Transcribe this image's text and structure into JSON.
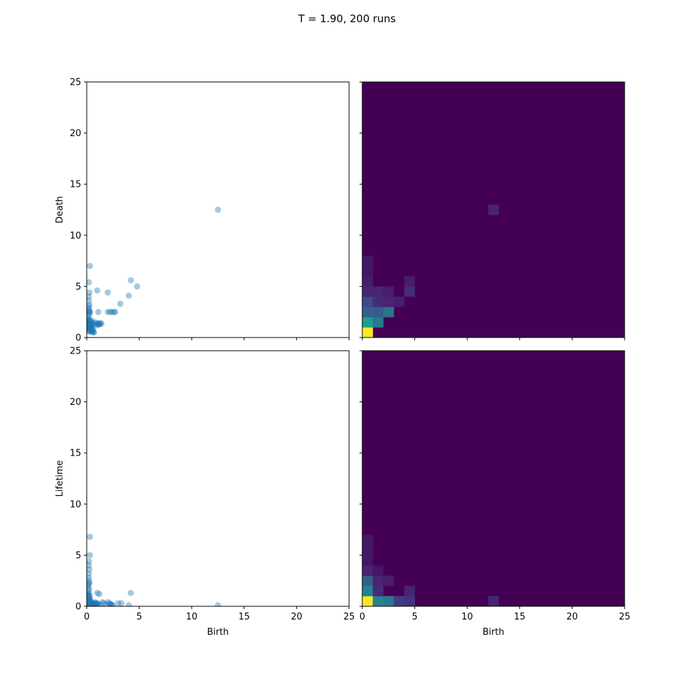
{
  "figure": {
    "suptitle": "T = 1.90, 200 runs"
  },
  "colors": {
    "scatter": "#1f77b4",
    "axis": "#000000",
    "viridis_low": "#440154",
    "viridis_high": "#fde725"
  },
  "chart_data": [
    {
      "type": "scatter",
      "panel": "top-left",
      "xlabel": "",
      "ylabel": "Death",
      "xlim": [
        0,
        25
      ],
      "ylim": [
        0,
        25
      ],
      "xticks": [
        0,
        5,
        10,
        15,
        20,
        25
      ],
      "yticks": [
        0,
        5,
        10,
        15,
        20,
        25
      ],
      "show_xticklabels": false,
      "show_yticklabels": true,
      "point_alpha": 0.05,
      "points": [
        [
          0.2,
          0.6
        ],
        [
          0.3,
          0.6
        ],
        [
          0.4,
          0.6
        ],
        [
          0.5,
          0.6
        ],
        [
          0.6,
          0.6
        ],
        [
          0.2,
          0.8
        ],
        [
          0.3,
          0.8
        ],
        [
          0.4,
          0.8
        ],
        [
          0.5,
          0.8
        ],
        [
          0.6,
          0.8
        ],
        [
          0.1,
          1.0
        ],
        [
          0.2,
          1.0
        ],
        [
          0.3,
          1.0
        ],
        [
          0.4,
          1.0
        ],
        [
          0.5,
          1.0
        ],
        [
          0.1,
          1.2
        ],
        [
          0.2,
          1.2
        ],
        [
          0.3,
          1.2
        ],
        [
          0.4,
          1.2
        ],
        [
          0.5,
          1.2
        ],
        [
          0.1,
          1.4
        ],
        [
          0.2,
          1.4
        ],
        [
          0.3,
          1.4
        ],
        [
          0.4,
          1.4
        ],
        [
          0.6,
          1.4
        ],
        [
          0.1,
          1.6
        ],
        [
          0.2,
          1.6
        ],
        [
          0.3,
          1.6
        ],
        [
          0.1,
          1.8
        ],
        [
          0.2,
          1.8
        ],
        [
          0.1,
          2.0
        ],
        [
          0.2,
          2.2
        ],
        [
          0.3,
          2.5
        ],
        [
          0.2,
          2.5
        ],
        [
          0.25,
          2.6
        ],
        [
          0.3,
          2.4
        ],
        [
          0.2,
          2.8
        ],
        [
          0.2,
          3.0
        ],
        [
          0.25,
          3.2
        ],
        [
          0.2,
          3.6
        ],
        [
          0.2,
          4.0
        ],
        [
          0.25,
          4.4
        ],
        [
          0.2,
          5.4
        ],
        [
          0.3,
          7.0
        ],
        [
          0.9,
          1.3
        ],
        [
          1.0,
          1.4
        ],
        [
          1.1,
          1.3
        ],
        [
          1.2,
          1.4
        ],
        [
          1.3,
          1.3
        ],
        [
          1.4,
          1.4
        ],
        [
          0.8,
          1.5
        ],
        [
          1.1,
          2.5
        ],
        [
          2.0,
          2.5
        ],
        [
          2.2,
          2.5
        ],
        [
          2.4,
          2.5
        ],
        [
          2.6,
          2.5
        ],
        [
          2.7,
          2.5
        ],
        [
          1.0,
          4.6
        ],
        [
          2.0,
          4.4
        ],
        [
          3.2,
          3.3
        ],
        [
          4.0,
          4.1
        ],
        [
          4.2,
          5.6
        ],
        [
          4.8,
          5.0
        ],
        [
          12.5,
          12.5
        ],
        [
          0.6,
          0.5
        ],
        [
          0.7,
          0.5
        ],
        [
          0.5,
          1.5
        ],
        [
          0.4,
          1.7
        ],
        [
          1.2,
          1.3
        ],
        [
          1.0,
          1.2
        ]
      ]
    },
    {
      "type": "heatmap",
      "panel": "top-right",
      "xlabel": "",
      "ylabel": "",
      "xlim": [
        0,
        25
      ],
      "ylim": [
        0,
        25
      ],
      "xticks": [
        0,
        5,
        10,
        15,
        20,
        25
      ],
      "yticks": [
        0,
        5,
        10,
        15,
        20,
        25
      ],
      "show_xticklabels": false,
      "show_yticklabels": false,
      "bins": 25,
      "colormap": "viridis",
      "cells": [
        [
          0,
          0,
          1.0
        ],
        [
          0,
          1,
          0.55
        ],
        [
          1,
          1,
          0.4
        ],
        [
          0,
          2,
          0.3
        ],
        [
          1,
          2,
          0.28
        ],
        [
          2,
          2,
          0.38
        ],
        [
          0,
          3,
          0.22
        ],
        [
          1,
          3,
          0.12
        ],
        [
          2,
          3,
          0.1
        ],
        [
          3,
          3,
          0.08
        ],
        [
          0,
          4,
          0.1
        ],
        [
          1,
          4,
          0.1
        ],
        [
          2,
          4,
          0.08
        ],
        [
          4,
          4,
          0.12
        ],
        [
          4,
          5,
          0.08
        ],
        [
          0,
          5,
          0.08
        ],
        [
          0,
          6,
          0.06
        ],
        [
          0,
          7,
          0.06
        ],
        [
          12,
          12,
          0.1
        ]
      ]
    },
    {
      "type": "scatter",
      "panel": "bottom-left",
      "xlabel": "Birth",
      "ylabel": "Lifetime",
      "xlim": [
        0,
        25
      ],
      "ylim": [
        0,
        25
      ],
      "xticks": [
        0,
        5,
        10,
        15,
        20,
        25
      ],
      "yticks": [
        0,
        5,
        10,
        15,
        20,
        25
      ],
      "show_xticklabels": true,
      "show_yticklabels": true,
      "point_alpha": 0.05,
      "points": [
        [
          0.1,
          0.1
        ],
        [
          0.2,
          0.1
        ],
        [
          0.3,
          0.1
        ],
        [
          0.4,
          0.1
        ],
        [
          0.5,
          0.1
        ],
        [
          0.6,
          0.1
        ],
        [
          0.7,
          0.1
        ],
        [
          0.8,
          0.1
        ],
        [
          0.9,
          0.1
        ],
        [
          1.0,
          0.1
        ],
        [
          0.1,
          0.3
        ],
        [
          0.2,
          0.3
        ],
        [
          0.3,
          0.3
        ],
        [
          0.4,
          0.3
        ],
        [
          0.5,
          0.3
        ],
        [
          0.6,
          0.3
        ],
        [
          0.7,
          0.2
        ],
        [
          0.8,
          0.2
        ],
        [
          1.0,
          0.3
        ],
        [
          1.2,
          0.2
        ],
        [
          0.1,
          0.5
        ],
        [
          0.2,
          0.5
        ],
        [
          0.3,
          0.5
        ],
        [
          0.4,
          0.5
        ],
        [
          0.1,
          0.7
        ],
        [
          0.2,
          0.7
        ],
        [
          0.3,
          0.7
        ],
        [
          0.1,
          0.9
        ],
        [
          0.2,
          0.9
        ],
        [
          0.1,
          1.1
        ],
        [
          0.2,
          1.1
        ],
        [
          0.3,
          1.0
        ],
        [
          0.1,
          1.3
        ],
        [
          0.2,
          1.3
        ],
        [
          0.2,
          1.6
        ],
        [
          0.2,
          1.8
        ],
        [
          0.1,
          2.0
        ],
        [
          0.2,
          2.2
        ],
        [
          0.25,
          2.3
        ],
        [
          0.2,
          2.5
        ],
        [
          0.2,
          2.8
        ],
        [
          0.2,
          3.2
        ],
        [
          0.25,
          3.6
        ],
        [
          0.2,
          4.0
        ],
        [
          0.2,
          4.4
        ],
        [
          0.3,
          5.0
        ],
        [
          0.3,
          6.8
        ],
        [
          1.0,
          1.3
        ],
        [
          1.2,
          1.2
        ],
        [
          1.5,
          0.4
        ],
        [
          2.0,
          0.4
        ],
        [
          2.2,
          0.3
        ],
        [
          2.3,
          0.2
        ],
        [
          2.4,
          0.1
        ],
        [
          2.5,
          0.1
        ],
        [
          2.2,
          0.2
        ],
        [
          3.0,
          0.3
        ],
        [
          3.3,
          0.3
        ],
        [
          4.0,
          0.1
        ],
        [
          4.2,
          1.3
        ],
        [
          1.6,
          0.3
        ],
        [
          1.8,
          0.2
        ],
        [
          12.5,
          0.1
        ],
        [
          0.4,
          0.2
        ],
        [
          0.5,
          0.2
        ],
        [
          0.6,
          0.2
        ],
        [
          0.7,
          0.3
        ],
        [
          0.8,
          0.4
        ],
        [
          0.9,
          0.3
        ],
        [
          1.1,
          0.2
        ]
      ]
    },
    {
      "type": "heatmap",
      "panel": "bottom-right",
      "xlabel": "Birth",
      "ylabel": "",
      "xlim": [
        0,
        25
      ],
      "ylim": [
        0,
        25
      ],
      "xticks": [
        0,
        5,
        10,
        15,
        20,
        25
      ],
      "yticks": [
        0,
        5,
        10,
        15,
        20,
        25
      ],
      "show_xticklabels": true,
      "show_yticklabels": false,
      "bins": 25,
      "colormap": "viridis",
      "cells": [
        [
          0,
          0,
          1.0
        ],
        [
          1,
          0,
          0.45
        ],
        [
          2,
          0,
          0.4
        ],
        [
          3,
          0,
          0.18
        ],
        [
          4,
          0,
          0.14
        ],
        [
          0,
          1,
          0.45
        ],
        [
          1,
          1,
          0.12
        ],
        [
          4,
          1,
          0.1
        ],
        [
          0,
          2,
          0.3
        ],
        [
          1,
          2,
          0.1
        ],
        [
          2,
          2,
          0.08
        ],
        [
          0,
          3,
          0.1
        ],
        [
          1,
          3,
          0.06
        ],
        [
          0,
          4,
          0.06
        ],
        [
          0,
          5,
          0.06
        ],
        [
          0,
          6,
          0.06
        ],
        [
          12,
          0,
          0.1
        ]
      ]
    }
  ]
}
